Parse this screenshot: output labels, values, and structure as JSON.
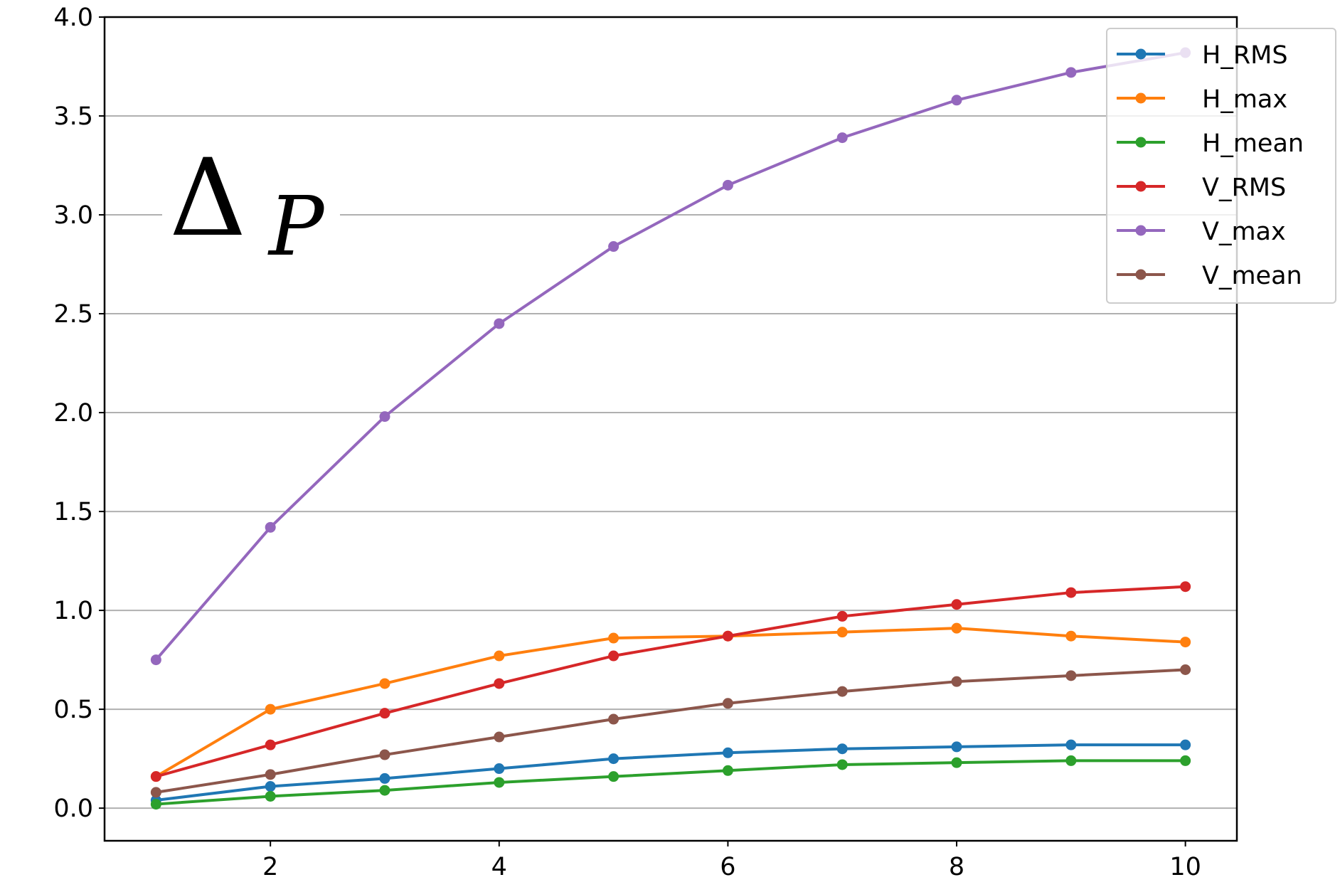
{
  "chart_data": {
    "type": "line",
    "annotation": {
      "text": "Δ",
      "subscript": "P"
    },
    "x": [
      1,
      2,
      3,
      4,
      5,
      6,
      7,
      8,
      9,
      10
    ],
    "series": [
      {
        "name": "H_RMS",
        "color": "#1f77b4",
        "values": [
          0.04,
          0.11,
          0.15,
          0.2,
          0.25,
          0.28,
          0.3,
          0.31,
          0.32,
          0.32
        ]
      },
      {
        "name": "H_max",
        "color": "#ff7f0e",
        "values": [
          0.16,
          0.5,
          0.63,
          0.77,
          0.86,
          0.87,
          0.89,
          0.91,
          0.87,
          0.84
        ]
      },
      {
        "name": "H_mean",
        "color": "#2ca02c",
        "values": [
          0.02,
          0.06,
          0.09,
          0.13,
          0.16,
          0.19,
          0.22,
          0.23,
          0.24,
          0.24
        ]
      },
      {
        "name": "V_RMS",
        "color": "#d62728",
        "values": [
          0.16,
          0.32,
          0.48,
          0.63,
          0.77,
          0.87,
          0.97,
          1.03,
          1.09,
          1.12
        ]
      },
      {
        "name": "V_max",
        "color": "#9467bd",
        "values": [
          0.75,
          1.42,
          1.98,
          2.45,
          2.84,
          3.15,
          3.39,
          3.58,
          3.72,
          3.82
        ]
      },
      {
        "name": "V_mean",
        "color": "#8c564b",
        "values": [
          0.08,
          0.17,
          0.27,
          0.36,
          0.45,
          0.53,
          0.59,
          0.64,
          0.67,
          0.7
        ]
      }
    ],
    "xlim": [
      0.55,
      10.45
    ],
    "xticks": [
      2,
      4,
      6,
      8,
      10
    ],
    "ylim": [
      -0.165,
      4.0
    ],
    "yticks": [
      {
        "value": 0,
        "label": "0.0"
      },
      {
        "value": 0.5,
        "label": "0.5"
      },
      {
        "value": 1,
        "label": "1.0"
      },
      {
        "value": 1.5,
        "label": "1.5"
      },
      {
        "value": 2,
        "label": "2.0"
      },
      {
        "value": 2.5,
        "label": "2.5"
      },
      {
        "value": 3,
        "label": "3.0"
      },
      {
        "value": 3.5,
        "label": "3.5"
      },
      {
        "value": 4,
        "label": "4.0"
      }
    ],
    "grid": "y",
    "legend": "upper right"
  }
}
